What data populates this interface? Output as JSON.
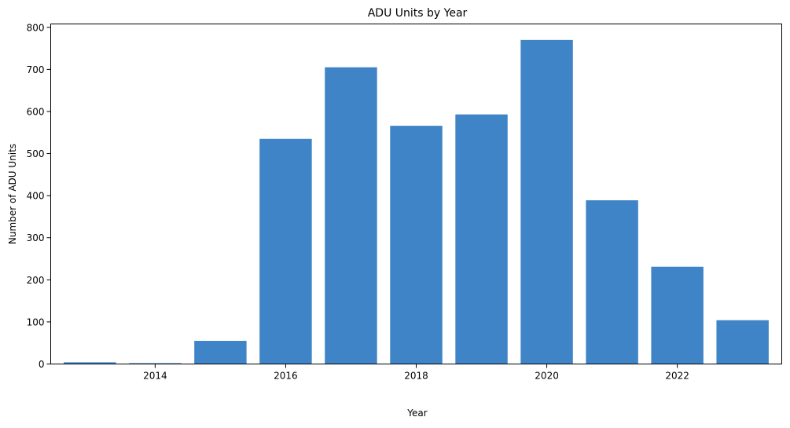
{
  "chart_data": {
    "type": "bar",
    "title": "ADU Units by Year",
    "xlabel": "Year",
    "ylabel": "Number of ADU Units",
    "categories": [
      "2013",
      "2014",
      "2015",
      "2016",
      "2017",
      "2018",
      "2019",
      "2020",
      "2021",
      "2022",
      "2023"
    ],
    "values": [
      4,
      2,
      55,
      535,
      705,
      566,
      593,
      770,
      389,
      231,
      104
    ],
    "xlim": [
      2012.4,
      2023.6
    ],
    "ylim": [
      0,
      808
    ],
    "xticks": [
      "2014",
      "2016",
      "2018",
      "2020",
      "2022"
    ],
    "yticks": [
      "0",
      "100",
      "200",
      "300",
      "400",
      "500",
      "600",
      "700",
      "800"
    ],
    "grid": false,
    "bar_color": "#3e84c6"
  }
}
